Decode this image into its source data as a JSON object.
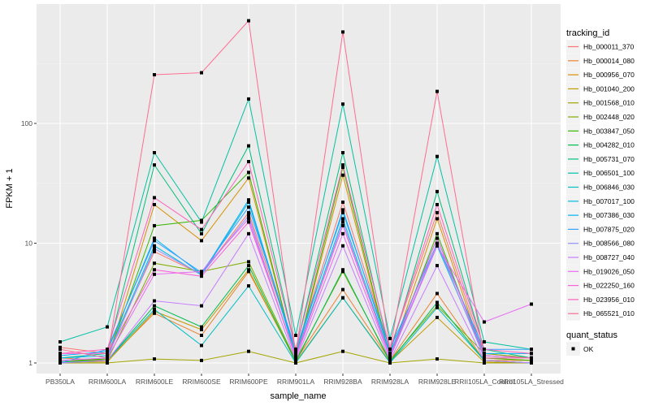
{
  "chart_data": {
    "type": "line",
    "title": "",
    "xlabel": "sample_name",
    "ylabel": "FPKM + 1",
    "y_scale": "log10",
    "y_ticks": [
      1,
      10,
      100
    ],
    "y_tick_labels": [
      "1",
      "10",
      "100"
    ],
    "ylim": [
      0.8,
      1000
    ],
    "grid": true,
    "categories": [
      "PB350LA",
      "RRIM600LA",
      "RRIM600LE",
      "RRIM600SE",
      "RRIM600PE",
      "RRIM901LA",
      "RRIM928BA",
      "RRIM928LA",
      "RRIM928LE",
      "RRII105LA_Control",
      "RRII105LA_Stressed"
    ],
    "legend": {
      "title": "tracking_id",
      "placement": "right"
    },
    "shape_legend": {
      "title": "quant_status",
      "items": [
        "OK"
      ]
    },
    "series": [
      {
        "name": "Hb_000011_370",
        "color": "#F8766D",
        "values": [
          1.35,
          1.2,
          8.5,
          5.5,
          18,
          1.25,
          22,
          1.3,
          18,
          1.2,
          1.1
        ]
      },
      {
        "name": "Hb_000014_080",
        "color": "#EA8331",
        "values": [
          1.1,
          1.05,
          2.6,
          1.7,
          5.8,
          1.05,
          4.1,
          1.05,
          3.8,
          1.05,
          1.05
        ]
      },
      {
        "name": "Hb_000956_070",
        "color": "#D89000",
        "values": [
          1.05,
          1.05,
          21,
          10.5,
          35,
          1.1,
          37,
          1.1,
          16,
          1.1,
          1.05
        ]
      },
      {
        "name": "Hb_001040_200",
        "color": "#C09B00",
        "values": [
          1.02,
          1.02,
          2.7,
          1.9,
          6,
          1.02,
          3.5,
          1.02,
          2.4,
          1.02,
          1.0
        ]
      },
      {
        "name": "Hb_001568_010",
        "color": "#A3A500",
        "values": [
          1.0,
          1.0,
          1.08,
          1.05,
          1.25,
          1.0,
          1.25,
          1.0,
          1.08,
          1.0,
          1.0
        ]
      },
      {
        "name": "Hb_002448_020",
        "color": "#7CAE00",
        "values": [
          1.05,
          1.05,
          6.8,
          5.8,
          7,
          1.05,
          5.8,
          1.05,
          3,
          1.2,
          1.1
        ]
      },
      {
        "name": "Hb_003847_050",
        "color": "#39B600",
        "values": [
          1.05,
          1.08,
          14,
          15.5,
          39,
          1.1,
          43,
          1.1,
          12,
          1.1,
          1.05
        ]
      },
      {
        "name": "Hb_004282_010",
        "color": "#00BB4E",
        "values": [
          1.02,
          1.05,
          3,
          2,
          6.5,
          1.02,
          6,
          1.02,
          3.2,
          1.05,
          1.0
        ]
      },
      {
        "name": "Hb_005731_070",
        "color": "#00BF7D",
        "values": [
          1.1,
          1.2,
          45,
          12,
          65,
          1.3,
          57,
          1.2,
          27,
          1.3,
          1.1
        ]
      },
      {
        "name": "Hb_006501_100",
        "color": "#00C1A3",
        "values": [
          1.5,
          2.0,
          57,
          15,
          160,
          1.7,
          145,
          1.6,
          53,
          1.5,
          1.3
        ]
      },
      {
        "name": "Hb_006846_030",
        "color": "#00BFC4",
        "values": [
          1.0,
          1.05,
          2.8,
          1.4,
          4.4,
          1.0,
          3.5,
          1.0,
          2.9,
          1.05,
          1.0
        ]
      },
      {
        "name": "Hb_007017_100",
        "color": "#00BAE0",
        "values": [
          1.1,
          1.15,
          9.5,
          5.4,
          22,
          1.15,
          16,
          1.15,
          9.5,
          1.15,
          1.1
        ]
      },
      {
        "name": "Hb_007386_030",
        "color": "#00B0F6",
        "values": [
          1.15,
          1.25,
          11,
          5.5,
          23,
          1.2,
          19,
          1.2,
          11,
          1.2,
          1.2
        ]
      },
      {
        "name": "Hb_007875_020",
        "color": "#35A2FF",
        "values": [
          1.0,
          1.3,
          10.5,
          5.7,
          20,
          1.3,
          18,
          1.3,
          10,
          1.3,
          1.3
        ]
      },
      {
        "name": "Hb_008566_080",
        "color": "#9590FF",
        "values": [
          1.05,
          1.1,
          9,
          5.5,
          17,
          1.1,
          15,
          1.1,
          10,
          1.1,
          1.1
        ]
      },
      {
        "name": "Hb_008727_040",
        "color": "#C77CFF",
        "values": [
          1.0,
          1.05,
          3.3,
          3,
          12,
          1.05,
          9.5,
          1.05,
          6.5,
          1.05,
          1.0
        ]
      },
      {
        "name": "Hb_019026_050",
        "color": "#E76BF3",
        "values": [
          1.05,
          1.1,
          5.5,
          5.8,
          16,
          1.1,
          12,
          1.1,
          9.5,
          2.2,
          3.1
        ]
      },
      {
        "name": "Hb_022250_160",
        "color": "#FA62DB",
        "values": [
          1.2,
          1.2,
          6,
          5.3,
          15,
          1.15,
          14,
          1.15,
          11,
          1.15,
          1.1
        ]
      },
      {
        "name": "Hb_023956_010",
        "color": "#FF62BC",
        "values": [
          1.2,
          1.3,
          24,
          13,
          48,
          1.3,
          45,
          1.3,
          21,
          1.3,
          1.2
        ]
      },
      {
        "name": "Hb_065521_010",
        "color": "#FF6C91",
        "values": [
          1.3,
          1.1,
          255,
          265,
          720,
          1.2,
          580,
          1.3,
          185,
          1.1,
          1.1
        ]
      }
    ]
  }
}
